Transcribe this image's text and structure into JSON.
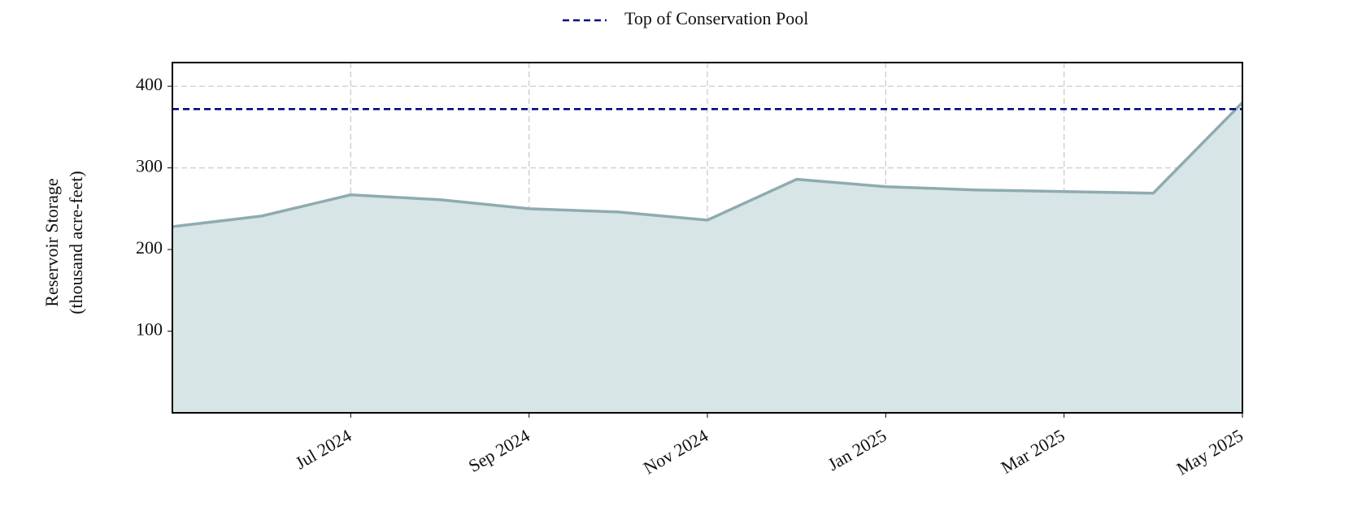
{
  "chart_data": {
    "type": "area",
    "ylabel": [
      "Reservoir Storage",
      "(thousand acre-feet)"
    ],
    "x": [
      "2024-05",
      "2024-06",
      "2024-07",
      "2024-08",
      "2024-09",
      "2024-10",
      "2024-11",
      "2024-12",
      "2025-01",
      "2025-02",
      "2025-03",
      "2025-04",
      "2025-05"
    ],
    "series": [
      {
        "name": "Reservoir Storage",
        "color": "#8fabb0",
        "fill": "#d7e5e7",
        "values": [
          228,
          241,
          267,
          261,
          250,
          246,
          236,
          286,
          277,
          273,
          271,
          269,
          380
        ]
      }
    ],
    "reference_lines": [
      {
        "name": "Top of Conservation Pool",
        "value": 372,
        "color": "#000080",
        "style": "dashed"
      }
    ],
    "xlim": [
      "2024-05",
      "2025-05"
    ],
    "xticks": [
      {
        "value": "2024-07",
        "label": "Jul 2024"
      },
      {
        "value": "2024-09",
        "label": "Sep 2024"
      },
      {
        "value": "2024-11",
        "label": "Nov 2024"
      },
      {
        "value": "2025-01",
        "label": "Jan 2025"
      },
      {
        "value": "2025-03",
        "label": "Mar 2025"
      },
      {
        "value": "2025-05",
        "label": "May 2025"
      }
    ],
    "ylim": [
      0,
      429
    ],
    "yticks": [
      100,
      200,
      300,
      400
    ],
    "grid": true,
    "legend": "top"
  }
}
